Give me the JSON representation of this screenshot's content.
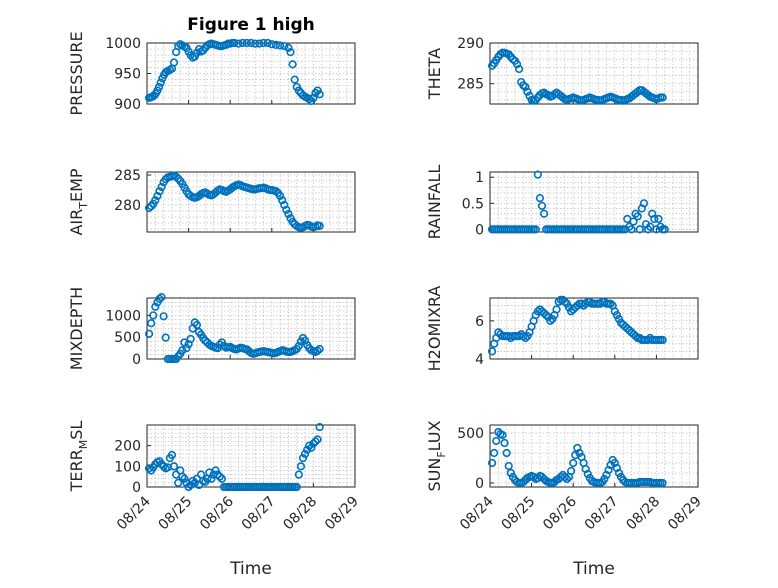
{
  "figure": {
    "title": "Figure 1 high",
    "marker_color": "#0072BD",
    "x_ticks": [
      "08/24",
      "08/25",
      "08/26",
      "08/27",
      "08/28",
      "08/29"
    ],
    "x_label": "Time"
  },
  "chart_data": [
    {
      "type": "scatter",
      "ylabel": "PRESSURE",
      "ylim": [
        900,
        1000
      ],
      "yticks": [
        900,
        950,
        1000
      ],
      "xlim": [
        0,
        5
      ],
      "grid": true,
      "x": [
        0.05,
        0.09,
        0.13,
        0.17,
        0.21,
        0.25,
        0.29,
        0.33,
        0.37,
        0.41,
        0.45,
        0.5,
        0.55,
        0.6,
        0.65,
        0.7,
        0.75,
        0.8,
        0.85,
        0.9,
        0.95,
        1.0,
        1.05,
        1.1,
        1.15,
        1.2,
        1.25,
        1.3,
        1.35,
        1.4,
        1.45,
        1.5,
        1.55,
        1.6,
        1.65,
        1.7,
        1.75,
        1.8,
        1.85,
        1.9,
        1.95,
        2.0,
        2.05,
        2.1,
        2.2,
        2.3,
        2.4,
        2.5,
        2.6,
        2.7,
        2.8,
        2.9,
        3.0,
        3.1,
        3.2,
        3.3,
        3.4,
        3.45,
        3.5,
        3.55,
        3.6,
        3.65,
        3.7,
        3.75,
        3.8,
        3.85,
        3.9,
        3.95,
        4.0,
        4.05,
        4.1,
        4.15
      ],
      "values": [
        910,
        911,
        912,
        914,
        917,
        922,
        928,
        935,
        942,
        948,
        952,
        954,
        956,
        958,
        968,
        985,
        995,
        998,
        996,
        994,
        992,
        986,
        980,
        976,
        978,
        984,
        990,
        986,
        988,
        992,
        996,
        998,
        999,
        998,
        997,
        996,
        995,
        995,
        996,
        997,
        999,
        999,
        1000,
        1000,
        999,
        1000,
        1000,
        1000,
        999,
        999,
        1000,
        1000,
        998,
        997,
        996,
        995,
        992,
        985,
        965,
        940,
        928,
        922,
        918,
        914,
        912,
        910,
        908,
        905,
        910,
        918,
        922,
        916
      ]
    },
    {
      "type": "scatter",
      "ylabel": "THETA",
      "ylim": [
        282.5,
        290
      ],
      "yticks": [
        285,
        290
      ],
      "xlim": [
        0,
        5
      ],
      "grid": true,
      "x": [
        0.05,
        0.1,
        0.15,
        0.2,
        0.25,
        0.3,
        0.35,
        0.4,
        0.45,
        0.5,
        0.55,
        0.6,
        0.65,
        0.7,
        0.75,
        0.8,
        0.85,
        0.9,
        0.95,
        1.0,
        1.05,
        1.1,
        1.15,
        1.2,
        1.25,
        1.3,
        1.35,
        1.4,
        1.45,
        1.5,
        1.55,
        1.6,
        1.65,
        1.7,
        1.75,
        1.8,
        1.85,
        1.9,
        1.95,
        2.0,
        2.05,
        2.1,
        2.15,
        2.2,
        2.25,
        2.3,
        2.35,
        2.4,
        2.45,
        2.5,
        2.55,
        2.6,
        2.65,
        2.7,
        2.75,
        2.8,
        2.85,
        2.9,
        2.95,
        3.0,
        3.05,
        3.1,
        3.15,
        3.2,
        3.25,
        3.3,
        3.35,
        3.4,
        3.45,
        3.5,
        3.55,
        3.6,
        3.65,
        3.7,
        3.75,
        3.8,
        3.85,
        3.9,
        3.95,
        4.0,
        4.05,
        4.1,
        4.15
      ],
      "values": [
        287.2,
        287.5,
        287.9,
        288.3,
        288.6,
        288.8,
        288.8,
        288.7,
        288.6,
        288.3,
        288.0,
        287.8,
        287.4,
        286.8,
        285.2,
        284.8,
        284.6,
        284.0,
        283.5,
        283.0,
        282.9,
        283.0,
        283.3,
        283.6,
        283.8,
        283.9,
        283.7,
        283.6,
        283.4,
        283.5,
        283.7,
        283.9,
        283.7,
        283.5,
        283.3,
        283.1,
        283.0,
        283.1,
        283.2,
        283.3,
        283.2,
        283.1,
        283.0,
        282.9,
        283.0,
        283.1,
        283.2,
        283.3,
        283.2,
        283.1,
        283.0,
        283.0,
        282.9,
        283.0,
        283.1,
        283.2,
        283.3,
        283.4,
        283.3,
        283.2,
        283.1,
        283.0,
        283.0,
        282.9,
        283.0,
        283.1,
        283.2,
        283.4,
        283.6,
        283.8,
        284.0,
        284.2,
        284.2,
        284.0,
        283.8,
        283.6,
        283.4,
        283.3,
        283.2,
        283.1,
        283.2,
        283.3,
        283.3
      ]
    },
    {
      "type": "scatter",
      "ylabel": "AIR_TEMP",
      "ylim": [
        275.5,
        285.5
      ],
      "yticks": [
        280,
        285
      ],
      "xlim": [
        0,
        5
      ],
      "grid": true,
      "x": [
        0.05,
        0.1,
        0.15,
        0.2,
        0.25,
        0.3,
        0.35,
        0.4,
        0.45,
        0.5,
        0.55,
        0.6,
        0.65,
        0.7,
        0.75,
        0.8,
        0.85,
        0.9,
        0.95,
        1.0,
        1.05,
        1.1,
        1.15,
        1.2,
        1.25,
        1.3,
        1.35,
        1.4,
        1.45,
        1.5,
        1.55,
        1.6,
        1.65,
        1.7,
        1.75,
        1.8,
        1.85,
        1.9,
        1.95,
        2.0,
        2.05,
        2.1,
        2.15,
        2.2,
        2.25,
        2.3,
        2.35,
        2.4,
        2.45,
        2.5,
        2.55,
        2.6,
        2.65,
        2.7,
        2.75,
        2.8,
        2.85,
        2.9,
        2.95,
        3.0,
        3.05,
        3.1,
        3.15,
        3.2,
        3.25,
        3.3,
        3.35,
        3.4,
        3.45,
        3.5,
        3.55,
        3.6,
        3.65,
        3.7,
        3.75,
        3.8,
        3.85,
        3.9,
        3.95,
        4.0,
        4.05,
        4.1,
        4.15
      ],
      "values": [
        279.5,
        279.8,
        280.2,
        280.8,
        281.5,
        282.3,
        283.0,
        283.8,
        284.3,
        284.6,
        284.7,
        284.8,
        284.9,
        284.7,
        284.4,
        284.0,
        283.5,
        282.9,
        282.3,
        281.8,
        281.5,
        281.3,
        281.2,
        281.3,
        281.5,
        281.8,
        282.0,
        282.1,
        281.9,
        281.7,
        281.6,
        281.8,
        282.1,
        282.4,
        282.6,
        282.5,
        282.3,
        282.2,
        282.4,
        282.6,
        282.9,
        283.1,
        283.3,
        283.4,
        283.3,
        283.1,
        283.0,
        282.9,
        282.8,
        282.7,
        282.6,
        282.6,
        282.7,
        282.8,
        282.8,
        282.9,
        282.8,
        282.6,
        282.5,
        282.5,
        282.4,
        282.3,
        282.0,
        281.5,
        280.8,
        280.0,
        279.2,
        278.5,
        277.8,
        277.2,
        276.8,
        276.5,
        276.3,
        276.2,
        276.3,
        276.5,
        276.7,
        276.6,
        276.4,
        276.3,
        276.4,
        276.6,
        276.5
      ]
    },
    {
      "type": "scatter",
      "ylabel": "RAINFALL",
      "ylim": [
        -0.05,
        1.1
      ],
      "yticks": [
        0,
        0.5,
        1
      ],
      "xlim": [
        0,
        5
      ],
      "grid": true,
      "x": [
        0.05,
        0.1,
        0.15,
        0.2,
        0.25,
        0.3,
        0.35,
        0.4,
        0.45,
        0.5,
        0.55,
        0.6,
        0.65,
        0.7,
        0.75,
        0.8,
        0.85,
        0.9,
        0.95,
        1.0,
        1.05,
        1.1,
        1.15,
        1.2,
        1.25,
        1.3,
        1.35,
        1.4,
        1.45,
        1.5,
        1.55,
        1.6,
        1.65,
        1.7,
        1.75,
        1.8,
        1.85,
        1.9,
        1.95,
        2.0,
        2.05,
        2.1,
        2.15,
        2.2,
        2.25,
        2.3,
        2.35,
        2.4,
        2.45,
        2.5,
        2.55,
        2.6,
        2.65,
        2.7,
        2.75,
        2.8,
        2.85,
        2.9,
        2.95,
        3.0,
        3.05,
        3.1,
        3.15,
        3.2,
        3.25,
        3.3,
        3.35,
        3.4,
        3.45,
        3.5,
        3.55,
        3.6,
        3.65,
        3.7,
        3.75,
        3.8,
        3.85,
        3.9,
        3.95,
        4.0,
        4.05,
        4.1,
        4.15,
        4.2
      ],
      "values": [
        0,
        0,
        0,
        0,
        0,
        0,
        0,
        0,
        0,
        0,
        0,
        0,
        0,
        0,
        0,
        0,
        0,
        0,
        0,
        0,
        0,
        0,
        1.05,
        0.6,
        0.45,
        0.3,
        0,
        0,
        0,
        0,
        0,
        0,
        0,
        0,
        0,
        0,
        0,
        0,
        0,
        0,
        0,
        0,
        0,
        0,
        0,
        0,
        0,
        0,
        0,
        0,
        0,
        0,
        0,
        0,
        0,
        0,
        0,
        0,
        0,
        0,
        0,
        0,
        0,
        0,
        0,
        0.2,
        0.05,
        0,
        0.15,
        0.3,
        0.25,
        0,
        0.4,
        0.5,
        0.1,
        0,
        0.05,
        0.3,
        0.2,
        0,
        0.2,
        0.05,
        0,
        0
      ]
    },
    {
      "type": "scatter",
      "ylabel": "MIXDEPTH",
      "ylim": [
        0,
        1400
      ],
      "yticks": [
        0,
        500,
        1000
      ],
      "xlim": [
        0,
        5
      ],
      "grid": true,
      "x": [
        0.05,
        0.1,
        0.15,
        0.2,
        0.25,
        0.3,
        0.35,
        0.4,
        0.45,
        0.5,
        0.55,
        0.6,
        0.65,
        0.7,
        0.75,
        0.8,
        0.85,
        0.9,
        0.95,
        1.0,
        1.05,
        1.1,
        1.15,
        1.2,
        1.25,
        1.3,
        1.35,
        1.4,
        1.45,
        1.5,
        1.55,
        1.6,
        1.65,
        1.7,
        1.75,
        1.8,
        1.85,
        1.9,
        1.95,
        2.0,
        2.05,
        2.1,
        2.15,
        2.2,
        2.25,
        2.3,
        2.35,
        2.4,
        2.45,
        2.5,
        2.55,
        2.6,
        2.65,
        2.7,
        2.75,
        2.8,
        2.85,
        2.9,
        2.95,
        3.0,
        3.05,
        3.1,
        3.15,
        3.2,
        3.25,
        3.3,
        3.35,
        3.4,
        3.45,
        3.5,
        3.55,
        3.6,
        3.65,
        3.7,
        3.75,
        3.8,
        3.85,
        3.9,
        3.95,
        4.0,
        4.05,
        4.1,
        4.15
      ],
      "values": [
        580,
        820,
        1000,
        1200,
        1300,
        1380,
        1420,
        980,
        490,
        0,
        0,
        0,
        0,
        0,
        60,
        120,
        200,
        380,
        250,
        340,
        460,
        700,
        840,
        780,
        620,
        560,
        480,
        420,
        380,
        330,
        300,
        280,
        260,
        250,
        330,
        380,
        300,
        260,
        270,
        280,
        250,
        230,
        220,
        240,
        260,
        250,
        230,
        220,
        180,
        140,
        120,
        130,
        150,
        160,
        170,
        180,
        170,
        160,
        150,
        140,
        130,
        140,
        160,
        180,
        200,
        190,
        170,
        160,
        160,
        180,
        200,
        230,
        300,
        400,
        480,
        420,
        320,
        250,
        200,
        180,
        160,
        190,
        230
      ]
    },
    {
      "type": "scatter",
      "ylabel": "H2OMIXRA",
      "ylim": [
        4,
        7.2
      ],
      "yticks": [
        4,
        6
      ],
      "xlim": [
        0,
        5
      ],
      "grid": true,
      "x": [
        0.05,
        0.1,
        0.15,
        0.2,
        0.25,
        0.3,
        0.35,
        0.4,
        0.45,
        0.5,
        0.55,
        0.6,
        0.65,
        0.7,
        0.75,
        0.8,
        0.85,
        0.9,
        0.95,
        1.0,
        1.05,
        1.1,
        1.15,
        1.2,
        1.25,
        1.3,
        1.35,
        1.4,
        1.45,
        1.5,
        1.55,
        1.6,
        1.65,
        1.7,
        1.75,
        1.8,
        1.85,
        1.9,
        1.95,
        2.0,
        2.05,
        2.1,
        2.15,
        2.2,
        2.25,
        2.3,
        2.35,
        2.4,
        2.45,
        2.5,
        2.55,
        2.6,
        2.65,
        2.7,
        2.75,
        2.8,
        2.85,
        2.9,
        2.95,
        3.0,
        3.05,
        3.1,
        3.15,
        3.2,
        3.25,
        3.3,
        3.35,
        3.4,
        3.45,
        3.5,
        3.55,
        3.6,
        3.65,
        3.7,
        3.75,
        3.8,
        3.85,
        3.9,
        3.95,
        4.0,
        4.05,
        4.1,
        4.15
      ],
      "values": [
        4.4,
        4.8,
        5.1,
        5.4,
        5.3,
        5.2,
        5.2,
        5.2,
        5.2,
        5.1,
        5.2,
        5.2,
        5.2,
        5.2,
        5.3,
        5.2,
        5.1,
        5.2,
        5.4,
        5.7,
        6.0,
        6.3,
        6.5,
        6.6,
        6.5,
        6.4,
        6.3,
        6.2,
        6.0,
        6.1,
        6.3,
        6.6,
        7.0,
        7.1,
        7.1,
        7.0,
        6.9,
        6.7,
        6.5,
        6.6,
        6.7,
        6.8,
        6.9,
        6.9,
        6.8,
        6.9,
        7.0,
        7.0,
        6.9,
        6.9,
        6.9,
        6.9,
        6.9,
        7.0,
        7.0,
        6.9,
        6.9,
        6.9,
        6.8,
        6.5,
        6.3,
        6.1,
        5.9,
        5.8,
        5.7,
        5.6,
        5.5,
        5.4,
        5.3,
        5.2,
        5.1,
        5.1,
        5.0,
        5.0,
        5.0,
        5.0,
        5.1,
        5.0,
        5.0,
        5.0,
        5.0,
        5.0,
        5.0
      ]
    },
    {
      "type": "scatter",
      "ylabel": "TERR_MSL",
      "ylim": [
        0,
        300
      ],
      "yticks": [
        0,
        100,
        200
      ],
      "xlim": [
        0,
        5
      ],
      "grid": true,
      "x": [
        0.05,
        0.1,
        0.15,
        0.2,
        0.25,
        0.3,
        0.35,
        0.4,
        0.45,
        0.5,
        0.55,
        0.6,
        0.65,
        0.7,
        0.75,
        0.8,
        0.85,
        0.9,
        0.95,
        1.0,
        1.05,
        1.1,
        1.15,
        1.2,
        1.25,
        1.3,
        1.35,
        1.4,
        1.45,
        1.5,
        1.55,
        1.6,
        1.65,
        1.7,
        1.75,
        1.8,
        1.85,
        1.9,
        1.95,
        2.0,
        2.05,
        2.1,
        2.15,
        2.2,
        2.25,
        2.3,
        2.35,
        2.4,
        2.45,
        2.5,
        2.55,
        2.6,
        2.65,
        2.7,
        2.75,
        2.8,
        2.85,
        2.9,
        2.95,
        3.0,
        3.05,
        3.1,
        3.15,
        3.2,
        3.25,
        3.3,
        3.35,
        3.4,
        3.45,
        3.5,
        3.55,
        3.6,
        3.65,
        3.7,
        3.75,
        3.8,
        3.85,
        3.9,
        3.95,
        4.0,
        4.05,
        4.1,
        4.15
      ],
      "values": [
        90,
        80,
        95,
        110,
        120,
        125,
        110,
        100,
        90,
        95,
        140,
        155,
        100,
        60,
        20,
        80,
        50,
        40,
        20,
        0,
        10,
        30,
        20,
        40,
        10,
        60,
        30,
        25,
        40,
        70,
        40,
        60,
        80,
        60,
        50,
        40,
        0,
        0,
        0,
        0,
        0,
        0,
        0,
        0,
        0,
        0,
        0,
        0,
        0,
        0,
        0,
        0,
        0,
        0,
        0,
        0,
        0,
        0,
        0,
        0,
        0,
        0,
        0,
        0,
        0,
        0,
        0,
        0,
        0,
        0,
        0,
        0,
        60,
        100,
        140,
        160,
        180,
        200,
        190,
        210,
        220,
        230,
        290
      ]
    },
    {
      "type": "scatter",
      "ylabel": "SUN_FLUX",
      "ylim": [
        -40,
        580
      ],
      "yticks": [
        0,
        500
      ],
      "xlim": [
        0,
        5
      ],
      "grid": true,
      "x": [
        0.05,
        0.1,
        0.15,
        0.2,
        0.25,
        0.3,
        0.35,
        0.4,
        0.45,
        0.5,
        0.55,
        0.6,
        0.65,
        0.7,
        0.75,
        0.8,
        0.85,
        0.9,
        0.95,
        1.0,
        1.05,
        1.1,
        1.15,
        1.2,
        1.25,
        1.3,
        1.35,
        1.4,
        1.45,
        1.5,
        1.55,
        1.6,
        1.65,
        1.7,
        1.75,
        1.8,
        1.85,
        1.9,
        1.95,
        2.0,
        2.05,
        2.1,
        2.15,
        2.2,
        2.25,
        2.3,
        2.35,
        2.4,
        2.45,
        2.5,
        2.55,
        2.6,
        2.65,
        2.7,
        2.75,
        2.8,
        2.85,
        2.9,
        2.95,
        3.0,
        3.05,
        3.1,
        3.15,
        3.2,
        3.25,
        3.3,
        3.35,
        3.4,
        3.45,
        3.5,
        3.55,
        3.6,
        3.65,
        3.7,
        3.75,
        3.8,
        3.85,
        3.9,
        3.95,
        4.0,
        4.05,
        4.1,
        4.15
      ],
      "values": [
        200,
        300,
        420,
        510,
        490,
        480,
        400,
        300,
        170,
        100,
        60,
        30,
        10,
        0,
        0,
        10,
        30,
        50,
        60,
        70,
        60,
        40,
        50,
        70,
        60,
        40,
        20,
        10,
        0,
        0,
        10,
        30,
        40,
        60,
        80,
        60,
        40,
        60,
        120,
        200,
        280,
        350,
        300,
        260,
        200,
        140,
        90,
        50,
        20,
        10,
        0,
        0,
        0,
        10,
        40,
        80,
        130,
        180,
        230,
        200,
        150,
        100,
        60,
        30,
        10,
        0,
        0,
        0,
        0,
        0,
        0,
        10,
        10,
        10,
        10,
        10,
        10,
        0,
        0,
        0,
        0,
        0,
        0
      ]
    }
  ]
}
